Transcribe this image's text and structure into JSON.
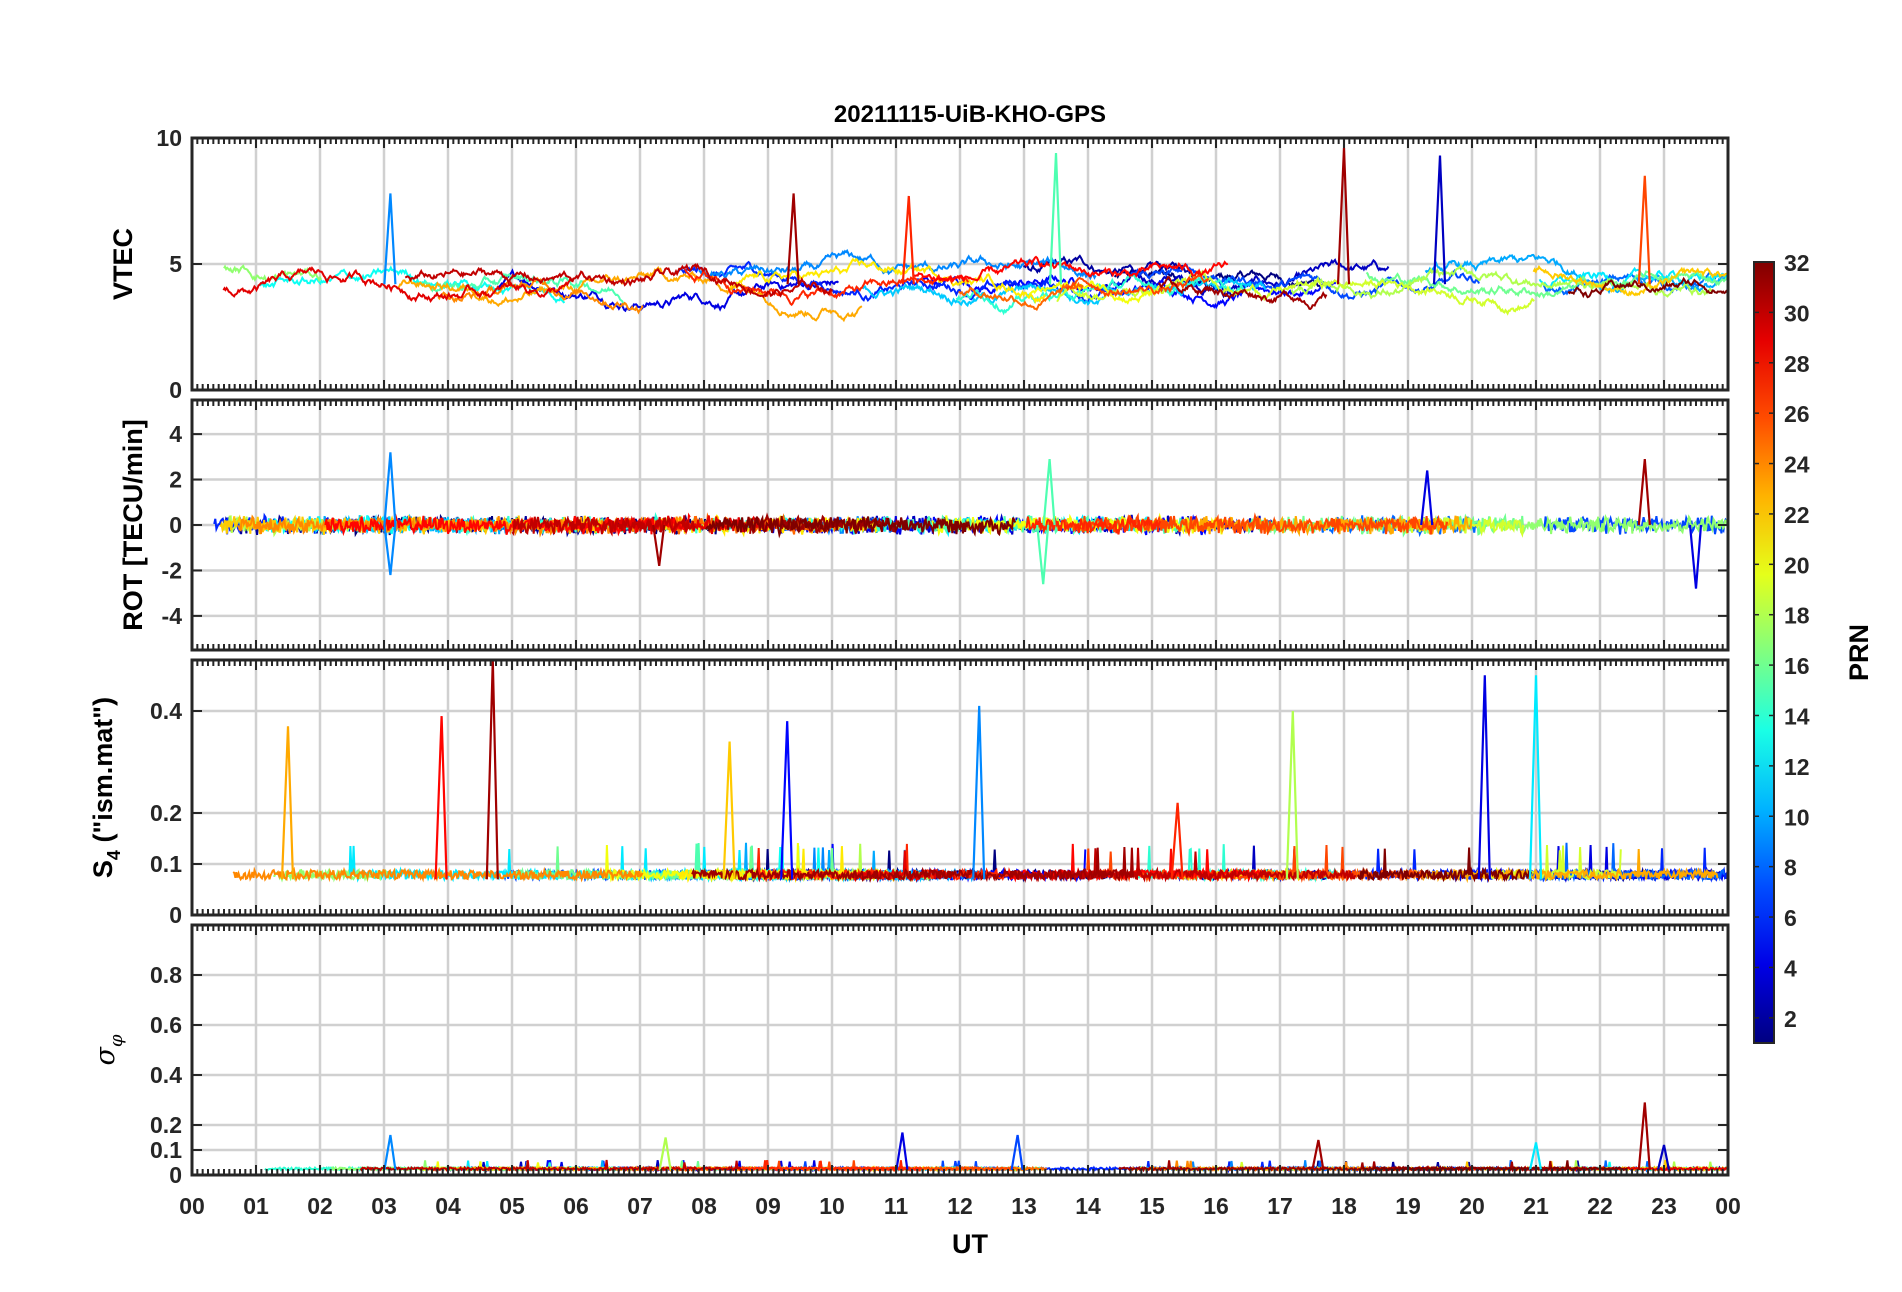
{
  "chart_data": {
    "type": "line",
    "title": "20211115-UiB-KHO-GPS",
    "x_tick_labels": [
      "00",
      "01",
      "02",
      "03",
      "04",
      "05",
      "06",
      "07",
      "08",
      "09",
      "10",
      "11",
      "12",
      "13",
      "14",
      "15",
      "16",
      "17",
      "18",
      "19",
      "20",
      "21",
      "22",
      "23",
      "00"
    ],
    "xlabel": "UT",
    "xlim_hours": [
      0,
      24
    ],
    "grid": true,
    "panels": [
      {
        "id": "vtec",
        "ylabel": "VTEC",
        "ylim": [
          0,
          10
        ],
        "yticks": [
          0,
          5,
          10
        ],
        "ytick_labels": [
          "0",
          "5",
          "10"
        ],
        "baseline": 4.2,
        "noise": 0.35,
        "spikes": [
          {
            "t": 3.1,
            "v": 7.8,
            "prn": 9
          },
          {
            "t": 13.5,
            "v": 9.4,
            "prn": 15
          },
          {
            "t": 18.0,
            "v": 9.6,
            "prn": 31
          },
          {
            "t": 19.5,
            "v": 9.3,
            "prn": 3
          },
          {
            "t": 9.4,
            "v": 7.8,
            "prn": 31
          },
          {
            "t": 11.2,
            "v": 7.7,
            "prn": 27
          },
          {
            "t": 22.7,
            "v": 8.5,
            "prn": 26
          }
        ]
      },
      {
        "id": "rot",
        "ylabel": "ROT [TECU/min]",
        "ylim": [
          -5.5,
          5.5
        ],
        "yticks": [
          -4,
          -2,
          0,
          2,
          4
        ],
        "ytick_labels": [
          "-4",
          "-2",
          "0",
          "2",
          "4"
        ],
        "baseline": 0,
        "noise": 0.3,
        "spikes": [
          {
            "t": 3.1,
            "v": 3.2,
            "prn": 9
          },
          {
            "t": 3.1,
            "v": -2.2,
            "prn": 9
          },
          {
            "t": 13.4,
            "v": 2.9,
            "prn": 15
          },
          {
            "t": 13.3,
            "v": -2.6,
            "prn": 15
          },
          {
            "t": 22.7,
            "v": 2.9,
            "prn": 31
          },
          {
            "t": 23.5,
            "v": -2.8,
            "prn": 4
          },
          {
            "t": 19.3,
            "v": 2.4,
            "prn": 4
          },
          {
            "t": 7.3,
            "v": -1.8,
            "prn": 31
          }
        ]
      },
      {
        "id": "s4",
        "ylabel": "S",
        "ylabel_sub": "4",
        "ylabel_suffix": " (\"ism.mat\")",
        "ylim": [
          0,
          0.5
        ],
        "yticks": [
          0,
          0.1,
          0.2,
          0.4
        ],
        "ytick_labels": [
          "0",
          "0.1",
          "0.2",
          "0.4"
        ],
        "baseline": 0.07,
        "noise": 0.018,
        "spikes": [
          {
            "t": 4.7,
            "v": 0.5,
            "prn": 31
          },
          {
            "t": 20.2,
            "v": 0.47,
            "prn": 4
          },
          {
            "t": 21.0,
            "v": 0.47,
            "prn": 12
          },
          {
            "t": 12.3,
            "v": 0.41,
            "prn": 9
          },
          {
            "t": 3.9,
            "v": 0.39,
            "prn": 28
          },
          {
            "t": 17.2,
            "v": 0.4,
            "prn": 18
          },
          {
            "t": 9.3,
            "v": 0.38,
            "prn": 5
          },
          {
            "t": 1.5,
            "v": 0.37,
            "prn": 23
          },
          {
            "t": 8.4,
            "v": 0.34,
            "prn": 22
          },
          {
            "t": 15.4,
            "v": 0.22,
            "prn": 27
          }
        ]
      },
      {
        "id": "sigma",
        "ylabel": "σ",
        "ylabel_sub": "φ",
        "ylim": [
          0,
          1
        ],
        "yticks": [
          0,
          0.1,
          0.2,
          0.4,
          0.6,
          0.8
        ],
        "ytick_labels": [
          "0",
          "0.1",
          "0.2",
          "0.4",
          "0.6",
          "0.8"
        ],
        "baseline": 0.02,
        "noise": 0.01,
        "spikes": [
          {
            "t": 3.1,
            "v": 0.16,
            "prn": 9
          },
          {
            "t": 7.4,
            "v": 0.15,
            "prn": 18
          },
          {
            "t": 11.1,
            "v": 0.17,
            "prn": 4
          },
          {
            "t": 12.9,
            "v": 0.16,
            "prn": 7
          },
          {
            "t": 17.6,
            "v": 0.14,
            "prn": 31
          },
          {
            "t": 22.7,
            "v": 0.29,
            "prn": 31
          },
          {
            "t": 23.0,
            "v": 0.12,
            "prn": 3
          },
          {
            "t": 21.0,
            "v": 0.13,
            "prn": 12
          }
        ]
      }
    ],
    "colorbar": {
      "label": "PRN",
      "range": [
        1,
        32
      ],
      "tick_labels": [
        "2",
        "4",
        "6",
        "8",
        "10",
        "12",
        "14",
        "16",
        "18",
        "20",
        "22",
        "24",
        "26",
        "28",
        "30",
        "32"
      ],
      "colormap": "jet"
    }
  }
}
